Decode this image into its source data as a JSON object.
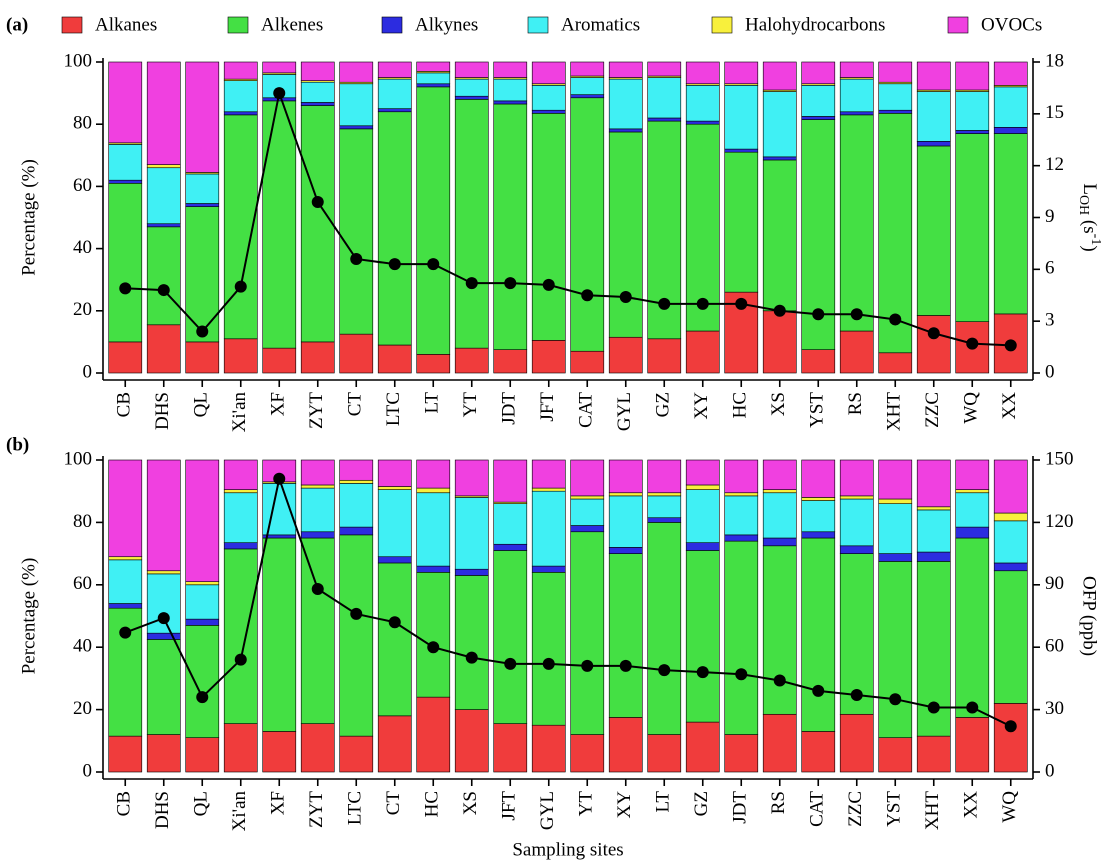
{
  "chart_data": [
    {
      "type": "bar",
      "stacked": true,
      "panel_label": "(a)",
      "ylabel": "Percentage (%)",
      "y2label": {
        "base": "L",
        "sub": "OH",
        "mid": " (s",
        "sup": "-1",
        "end": ")"
      },
      "legend": "top",
      "categories": [
        "CB",
        "DHS",
        "QL",
        "Xi'an",
        "XF",
        "ZYT",
        "CT",
        "LTC",
        "LT",
        "YT",
        "JDT",
        "JFT",
        "CAT",
        "GYL",
        "GZ",
        "XY",
        "HC",
        "XS",
        "YST",
        "RS",
        "XHT",
        "ZZC",
        "WQ",
        "XX"
      ],
      "series": [
        {
          "name": "Alkanes",
          "color": "#f03c3c",
          "values": [
            10,
            15.5,
            10,
            11,
            8,
            10,
            12.5,
            9,
            6,
            8,
            7.5,
            10.5,
            7,
            11.5,
            11,
            13.5,
            26,
            20,
            7.5,
            13.5,
            6.5,
            18.5,
            16.5,
            19
          ]
        },
        {
          "name": "Alkenes",
          "color": "#44e044",
          "values": [
            51,
            31.5,
            43.5,
            72,
            79.5,
            76,
            66,
            75,
            86,
            80,
            79,
            73,
            81.5,
            66,
            70,
            66.5,
            45,
            48.5,
            74,
            69.5,
            77,
            54.5,
            60.5,
            58
          ]
        },
        {
          "name": "Alkynes",
          "color": "#2c2ce0",
          "values": [
            1,
            1,
            1,
            1,
            1,
            1,
            1,
            1,
            1,
            1,
            1,
            1,
            1,
            1,
            1,
            1,
            1,
            1,
            1,
            1,
            1,
            1.5,
            1,
            2
          ]
        },
        {
          "name": "Aromatics",
          "color": "#40f0f4",
          "values": [
            11.5,
            18,
            9.5,
            10,
            7.5,
            6.5,
            13.5,
            9.5,
            3.5,
            5.5,
            7,
            8,
            5.5,
            16,
            13,
            11.5,
            20.5,
            21,
            10,
            10.5,
            8.5,
            16,
            12.5,
            13
          ]
        },
        {
          "name": "Halohydrocarbons",
          "color": "#f8f03c",
          "values": [
            0.5,
            1,
            0.5,
            0.5,
            0.5,
            0.5,
            0.5,
            0.5,
            0.5,
            0.5,
            0.5,
            0.5,
            0.5,
            0.5,
            0.5,
            0.5,
            0.5,
            0.5,
            0.5,
            0.5,
            0.5,
            0.5,
            0.5,
            0.5
          ]
        },
        {
          "name": "OVOCs",
          "color": "#f040e0",
          "values": [
            26,
            33,
            35.5,
            5.5,
            3.5,
            6,
            6.5,
            5,
            3,
            5,
            5,
            7,
            4.5,
            5,
            4.5,
            7,
            7,
            9,
            7,
            5,
            6.5,
            9,
            9,
            7.5
          ]
        },
        {
          "type": "line",
          "axis": "y2",
          "color": "#000000",
          "values": [
            4.9,
            4.8,
            2.4,
            5.0,
            16.2,
            9.9,
            6.6,
            6.3,
            6.3,
            5.2,
            5.2,
            5.1,
            4.5,
            4.4,
            4.0,
            4.0,
            4.0,
            3.6,
            3.4,
            3.4,
            3.1,
            2.3,
            1.7,
            1.6
          ]
        }
      ],
      "ylim": [
        0,
        100
      ],
      "yticks": [
        0,
        20,
        40,
        60,
        80,
        100
      ],
      "y2lim": [
        0,
        18
      ],
      "y2ticks": [
        0,
        3,
        6,
        9,
        12,
        15,
        18
      ]
    },
    {
      "type": "bar",
      "stacked": true,
      "panel_label": "(b)",
      "ylabel": "Percentage (%)",
      "y2label": "OFP (ppb)",
      "xlabel": "Sampling sites",
      "categories": [
        "CB",
        "DHS",
        "QL",
        "Xi'an",
        "XF",
        "ZYT",
        "LTC",
        "CT",
        "HC",
        "XS",
        "JFT",
        "GYL",
        "YT",
        "XY",
        "LT",
        "GZ",
        "JDT",
        "RS",
        "CAT",
        "ZZC",
        "YST",
        "XHT",
        "XX",
        "WQ"
      ],
      "series": [
        {
          "color": "#f03c3c",
          "values": [
            11.5,
            12,
            11,
            15.5,
            13,
            15.5,
            11.5,
            18,
            24,
            20,
            15.5,
            15,
            12,
            17.5,
            12,
            16,
            12,
            18.5,
            13,
            18.5,
            11,
            11.5,
            17.5,
            22
          ]
        },
        {
          "color": "#44e044",
          "values": [
            41,
            30.5,
            36,
            56,
            62,
            59.5,
            64.5,
            49,
            40,
            43,
            55.5,
            49,
            65,
            52.5,
            68,
            55,
            62,
            54,
            62,
            51.5,
            56.5,
            56,
            57.5,
            42.5
          ]
        },
        {
          "color": "#2c2ce0",
          "values": [
            1.5,
            2,
            2,
            2,
            1,
            2,
            2.5,
            2,
            2,
            2,
            2,
            2,
            2,
            2,
            1.5,
            2.5,
            2,
            2.5,
            2,
            2.5,
            2.5,
            3,
            3.5,
            2.5
          ]
        },
        {
          "color": "#40f0f4",
          "values": [
            14,
            19,
            11,
            16,
            16.5,
            14,
            14,
            21.5,
            23.5,
            23,
            13,
            24,
            8.5,
            16.5,
            7,
            17,
            12.5,
            14.5,
            10,
            15,
            16,
            13.5,
            11,
            13.5
          ]
        },
        {
          "color": "#f8f03c",
          "values": [
            1,
            1,
            1,
            1,
            0.5,
            1,
            1,
            1,
            1.5,
            0.5,
            0.5,
            1,
            1,
            1,
            1,
            1.5,
            1,
            1,
            1,
            1,
            1.5,
            1,
            1,
            2.5
          ]
        },
        {
          "color": "#f040e0",
          "values": [
            31,
            35.5,
            39,
            9.5,
            7,
            8,
            6.5,
            8.5,
            9,
            11.5,
            13.5,
            9,
            11.5,
            10.5,
            10.5,
            8,
            10.5,
            9.5,
            12,
            11.5,
            12.5,
            15,
            9.5,
            17
          ]
        },
        {
          "type": "line",
          "axis": "y2",
          "color": "#000000",
          "values": [
            67,
            74,
            36,
            54,
            141,
            88,
            76,
            72,
            60,
            55,
            52,
            52,
            51,
            51,
            49,
            48,
            47,
            44,
            39,
            37,
            35,
            31,
            31,
            22
          ]
        }
      ],
      "ylim": [
        0,
        100
      ],
      "yticks": [
        0,
        20,
        40,
        60,
        80,
        100
      ],
      "y2lim": [
        0,
        150
      ],
      "y2ticks": [
        0,
        30,
        60,
        90,
        120,
        150
      ]
    }
  ]
}
